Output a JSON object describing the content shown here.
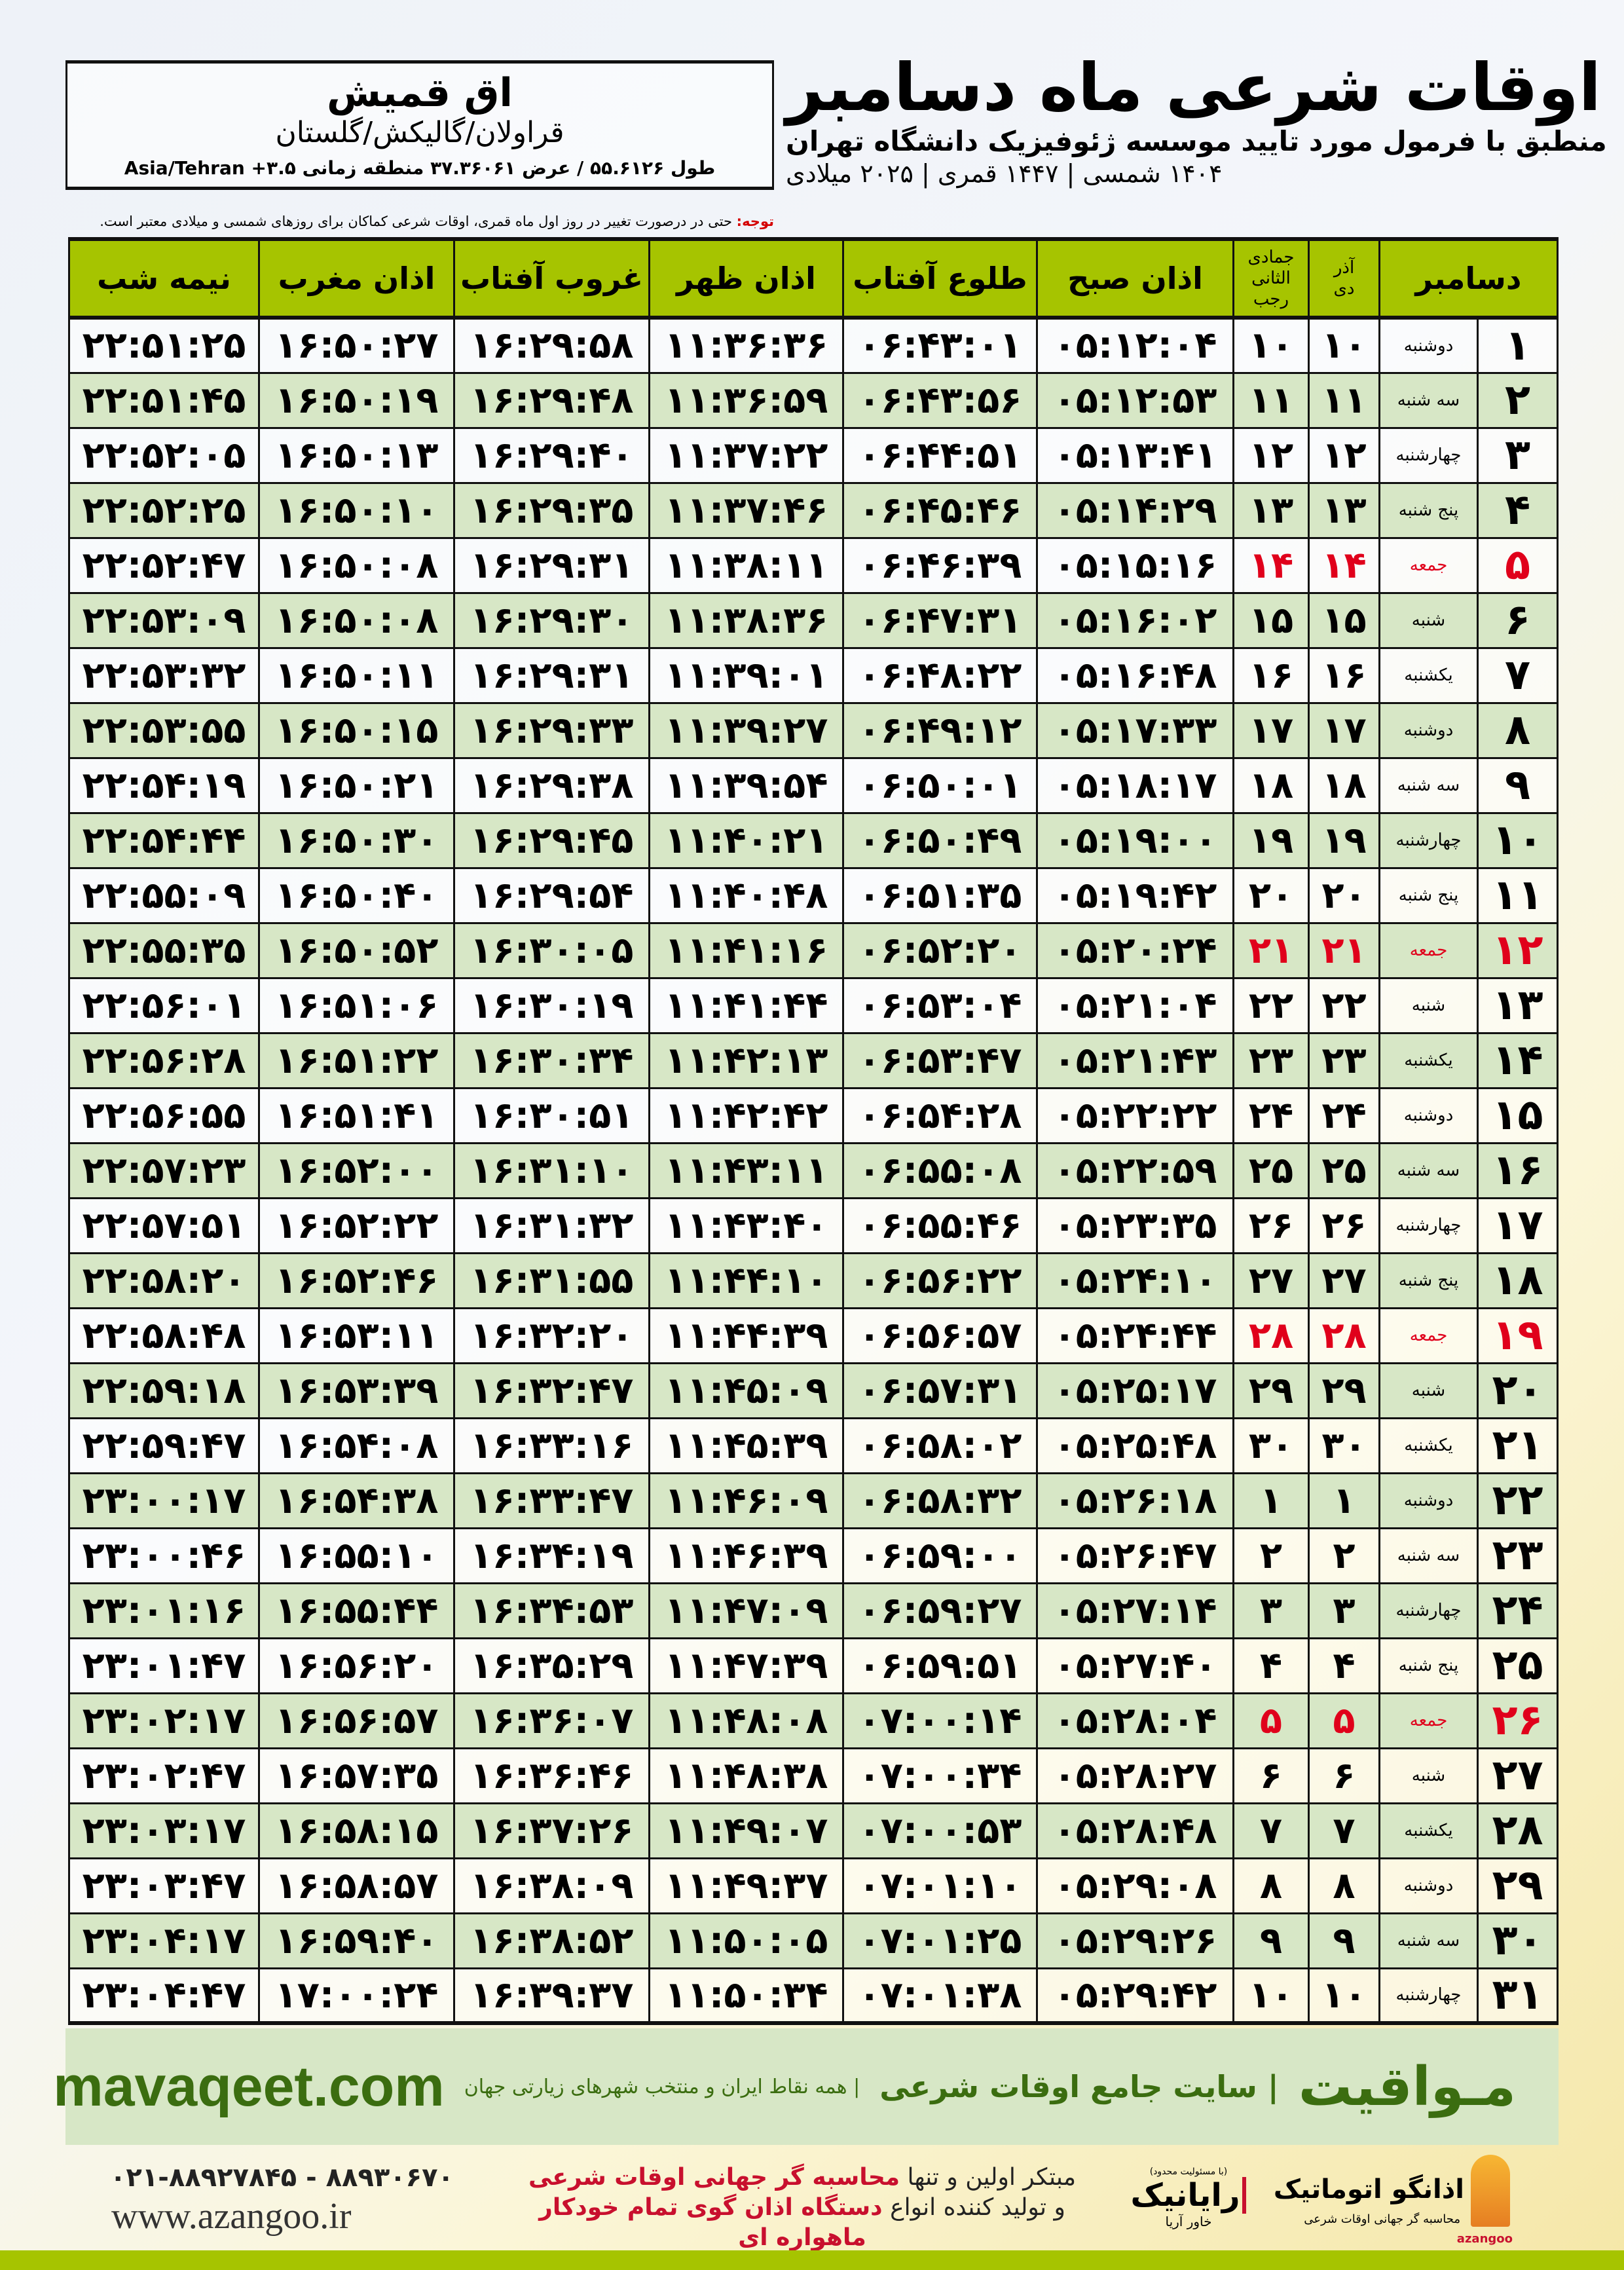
{
  "header": {
    "title": "اوقات شرعی ماه دسامبر",
    "subtitle": "منطبق با فرمول مورد تایید موسسه ژئوفیزیک دانشگاه تهران",
    "dates": "۱۴۰۴ شمسی | ۱۴۴۷ قمری | ۲۰۲۵ میلادی"
  },
  "location": {
    "name": "اق قمیش",
    "region": "قراولان/گالیکش/گلستان",
    "coords": "طول ۵۵.۶۱۲۶ / عرض ۳۷.۳۶۰۶۱ منطقه زمانی ۳.۵+ Asia/Tehran"
  },
  "note": {
    "label": "توجه:",
    "text": " حتی در درصورت تغییر در روز اول ماه قمری، اوقات شرعی کماکان برای روزهای شمسی و میلادی معتبر است."
  },
  "table": {
    "headers": {
      "month": "دسامبر",
      "dey_top": "آذر",
      "dey": "دی",
      "rajab_top": "جمادی الثانی",
      "rajab": "رجب",
      "fajr": "اذان صبح",
      "sunrise": "طلوع آفتاب",
      "dhuhr": "اذان ظهر",
      "sunset": "غروب آفتاب",
      "maghrib": "اذان مغرب",
      "midnight": "نیمه شب"
    },
    "holiday_color": "#e0001b",
    "header_color": "#a6c400",
    "alt_row_color": "#d7e7c6",
    "rows": [
      [
        "۱",
        "دوشنبه",
        "۱۰",
        "۱۰",
        "۰۵:۱۲:۰۴",
        "۰۶:۴۳:۰۱",
        "۱۱:۳۶:۳۶",
        "۱۶:۲۹:۵۸",
        "۱۶:۵۰:۲۷",
        "۲۲:۵۱:۲۵"
      ],
      [
        "۲",
        "سه شنبه",
        "۱۱",
        "۱۱",
        "۰۵:۱۲:۵۳",
        "۰۶:۴۳:۵۶",
        "۱۱:۳۶:۵۹",
        "۱۶:۲۹:۴۸",
        "۱۶:۵۰:۱۹",
        "۲۲:۵۱:۴۵"
      ],
      [
        "۳",
        "چهارشنبه",
        "۱۲",
        "۱۲",
        "۰۵:۱۳:۴۱",
        "۰۶:۴۴:۵۱",
        "۱۱:۳۷:۲۲",
        "۱۶:۲۹:۴۰",
        "۱۶:۵۰:۱۳",
        "۲۲:۵۲:۰۵"
      ],
      [
        "۴",
        "پنج شنبه",
        "۱۳",
        "۱۳",
        "۰۵:۱۴:۲۹",
        "۰۶:۴۵:۴۶",
        "۱۱:۳۷:۴۶",
        "۱۶:۲۹:۳۵",
        "۱۶:۵۰:۱۰",
        "۲۲:۵۲:۲۵"
      ],
      [
        "۵",
        "جمعه",
        "۱۴",
        "۱۴",
        "۰۵:۱۵:۱۶",
        "۰۶:۴۶:۳۹",
        "۱۱:۳۸:۱۱",
        "۱۶:۲۹:۳۱",
        "۱۶:۵۰:۰۸",
        "۲۲:۵۲:۴۷"
      ],
      [
        "۶",
        "شنبه",
        "۱۵",
        "۱۵",
        "۰۵:۱۶:۰۲",
        "۰۶:۴۷:۳۱",
        "۱۱:۳۸:۳۶",
        "۱۶:۲۹:۳۰",
        "۱۶:۵۰:۰۸",
        "۲۲:۵۳:۰۹"
      ],
      [
        "۷",
        "یکشنبه",
        "۱۶",
        "۱۶",
        "۰۵:۱۶:۴۸",
        "۰۶:۴۸:۲۲",
        "۱۱:۳۹:۰۱",
        "۱۶:۲۹:۳۱",
        "۱۶:۵۰:۱۱",
        "۲۲:۵۳:۳۲"
      ],
      [
        "۸",
        "دوشنبه",
        "۱۷",
        "۱۷",
        "۰۵:۱۷:۳۳",
        "۰۶:۴۹:۱۲",
        "۱۱:۳۹:۲۷",
        "۱۶:۲۹:۳۳",
        "۱۶:۵۰:۱۵",
        "۲۲:۵۳:۵۵"
      ],
      [
        "۹",
        "سه شنبه",
        "۱۸",
        "۱۸",
        "۰۵:۱۸:۱۷",
        "۰۶:۵۰:۰۱",
        "۱۱:۳۹:۵۴",
        "۱۶:۲۹:۳۸",
        "۱۶:۵۰:۲۱",
        "۲۲:۵۴:۱۹"
      ],
      [
        "۱۰",
        "چهارشنبه",
        "۱۹",
        "۱۹",
        "۰۵:۱۹:۰۰",
        "۰۶:۵۰:۴۹",
        "۱۱:۴۰:۲۱",
        "۱۶:۲۹:۴۵",
        "۱۶:۵۰:۳۰",
        "۲۲:۵۴:۴۴"
      ],
      [
        "۱۱",
        "پنج شنبه",
        "۲۰",
        "۲۰",
        "۰۵:۱۹:۴۲",
        "۰۶:۵۱:۳۵",
        "۱۱:۴۰:۴۸",
        "۱۶:۲۹:۵۴",
        "۱۶:۵۰:۴۰",
        "۲۲:۵۵:۰۹"
      ],
      [
        "۱۲",
        "جمعه",
        "۲۱",
        "۲۱",
        "۰۵:۲۰:۲۴",
        "۰۶:۵۲:۲۰",
        "۱۱:۴۱:۱۶",
        "۱۶:۳۰:۰۵",
        "۱۶:۵۰:۵۲",
        "۲۲:۵۵:۳۵"
      ],
      [
        "۱۳",
        "شنبه",
        "۲۲",
        "۲۲",
        "۰۵:۲۱:۰۴",
        "۰۶:۵۳:۰۴",
        "۱۱:۴۱:۴۴",
        "۱۶:۳۰:۱۹",
        "۱۶:۵۱:۰۶",
        "۲۲:۵۶:۰۱"
      ],
      [
        "۱۴",
        "یکشنبه",
        "۲۳",
        "۲۳",
        "۰۵:۲۱:۴۳",
        "۰۶:۵۳:۴۷",
        "۱۱:۴۲:۱۳",
        "۱۶:۳۰:۳۴",
        "۱۶:۵۱:۲۲",
        "۲۲:۵۶:۲۸"
      ],
      [
        "۱۵",
        "دوشنبه",
        "۲۴",
        "۲۴",
        "۰۵:۲۲:۲۲",
        "۰۶:۵۴:۲۸",
        "۱۱:۴۲:۴۲",
        "۱۶:۳۰:۵۱",
        "۱۶:۵۱:۴۱",
        "۲۲:۵۶:۵۵"
      ],
      [
        "۱۶",
        "سه شنبه",
        "۲۵",
        "۲۵",
        "۰۵:۲۲:۵۹",
        "۰۶:۵۵:۰۸",
        "۱۱:۴۳:۱۱",
        "۱۶:۳۱:۱۰",
        "۱۶:۵۲:۰۰",
        "۲۲:۵۷:۲۳"
      ],
      [
        "۱۷",
        "چهارشنبه",
        "۲۶",
        "۲۶",
        "۰۵:۲۳:۳۵",
        "۰۶:۵۵:۴۶",
        "۱۱:۴۳:۴۰",
        "۱۶:۳۱:۳۲",
        "۱۶:۵۲:۲۲",
        "۲۲:۵۷:۵۱"
      ],
      [
        "۱۸",
        "پنج شنبه",
        "۲۷",
        "۲۷",
        "۰۵:۲۴:۱۰",
        "۰۶:۵۶:۲۲",
        "۱۱:۴۴:۱۰",
        "۱۶:۳۱:۵۵",
        "۱۶:۵۲:۴۶",
        "۲۲:۵۸:۲۰"
      ],
      [
        "۱۹",
        "جمعه",
        "۲۸",
        "۲۸",
        "۰۵:۲۴:۴۴",
        "۰۶:۵۶:۵۷",
        "۱۱:۴۴:۳۹",
        "۱۶:۳۲:۲۰",
        "۱۶:۵۳:۱۱",
        "۲۲:۵۸:۴۸"
      ],
      [
        "۲۰",
        "شنبه",
        "۲۹",
        "۲۹",
        "۰۵:۲۵:۱۷",
        "۰۶:۵۷:۳۱",
        "۱۱:۴۵:۰۹",
        "۱۶:۳۲:۴۷",
        "۱۶:۵۳:۳۹",
        "۲۲:۵۹:۱۸"
      ],
      [
        "۲۱",
        "یکشنبه",
        "۳۰",
        "۳۰",
        "۰۵:۲۵:۴۸",
        "۰۶:۵۸:۰۲",
        "۱۱:۴۵:۳۹",
        "۱۶:۳۳:۱۶",
        "۱۶:۵۴:۰۸",
        "۲۲:۵۹:۴۷"
      ],
      [
        "۲۲",
        "دوشنبه",
        "۱",
        "۱",
        "۰۵:۲۶:۱۸",
        "۰۶:۵۸:۳۲",
        "۱۱:۴۶:۰۹",
        "۱۶:۳۳:۴۷",
        "۱۶:۵۴:۳۸",
        "۲۳:۰۰:۱۷"
      ],
      [
        "۲۳",
        "سه شنبه",
        "۲",
        "۲",
        "۰۵:۲۶:۴۷",
        "۰۶:۵۹:۰۰",
        "۱۱:۴۶:۳۹",
        "۱۶:۳۴:۱۹",
        "۱۶:۵۵:۱۰",
        "۲۳:۰۰:۴۶"
      ],
      [
        "۲۴",
        "چهارشنبه",
        "۳",
        "۳",
        "۰۵:۲۷:۱۴",
        "۰۶:۵۹:۲۷",
        "۱۱:۴۷:۰۹",
        "۱۶:۳۴:۵۳",
        "۱۶:۵۵:۴۴",
        "۲۳:۰۱:۱۶"
      ],
      [
        "۲۵",
        "پنج شنبه",
        "۴",
        "۴",
        "۰۵:۲۷:۴۰",
        "۰۶:۵۹:۵۱",
        "۱۱:۴۷:۳۹",
        "۱۶:۳۵:۲۹",
        "۱۶:۵۶:۲۰",
        "۲۳:۰۱:۴۷"
      ],
      [
        "۲۶",
        "جمعه",
        "۵",
        "۵",
        "۰۵:۲۸:۰۴",
        "۰۷:۰۰:۱۴",
        "۱۱:۴۸:۰۸",
        "۱۶:۳۶:۰۷",
        "۱۶:۵۶:۵۷",
        "۲۳:۰۲:۱۷"
      ],
      [
        "۲۷",
        "شنبه",
        "۶",
        "۶",
        "۰۵:۲۸:۲۷",
        "۰۷:۰۰:۳۴",
        "۱۱:۴۸:۳۸",
        "۱۶:۳۶:۴۶",
        "۱۶:۵۷:۳۵",
        "۲۳:۰۲:۴۷"
      ],
      [
        "۲۸",
        "یکشنبه",
        "۷",
        "۷",
        "۰۵:۲۸:۴۸",
        "۰۷:۰۰:۵۳",
        "۱۱:۴۹:۰۷",
        "۱۶:۳۷:۲۶",
        "۱۶:۵۸:۱۵",
        "۲۳:۰۳:۱۷"
      ],
      [
        "۲۹",
        "دوشنبه",
        "۸",
        "۸",
        "۰۵:۲۹:۰۸",
        "۰۷:۰۱:۱۰",
        "۱۱:۴۹:۳۷",
        "۱۶:۳۸:۰۹",
        "۱۶:۵۸:۵۷",
        "۲۳:۰۳:۴۷"
      ],
      [
        "۳۰",
        "سه شنبه",
        "۹",
        "۹",
        "۰۵:۲۹:۲۶",
        "۰۷:۰۱:۲۵",
        "۱۱:۵۰:۰۵",
        "۱۶:۳۸:۵۲",
        "۱۶:۵۹:۴۰",
        "۲۳:۰۴:۱۷"
      ],
      [
        "۳۱",
        "چهارشنبه",
        "۱۰",
        "۱۰",
        "۰۵:۲۹:۴۲",
        "۰۷:۰۱:۳۸",
        "۱۱:۵۰:۳۴",
        "۱۶:۳۹:۳۷",
        "۱۷:۰۰:۲۴",
        "۲۳:۰۴:۴۷"
      ]
    ]
  },
  "banner": {
    "brand": "مـواقیت",
    "tagline": "| سایت جامع اوقات شرعی",
    "sub": "| همه نقاط ایران و منتخب شهرهای زیارتی جهان",
    "url": "mavaqeet.com",
    "color": "#3b6d10"
  },
  "footer": {
    "phone": "۰۲۱-۸۸۹۲۷۸۴۵ - ۸۸۹۳۰۶۷۰",
    "website": "www.azangoo.ir",
    "promo1_a": "مبتکر اولین و تنها ",
    "promo1_b": "محاسبه گر جهانی اوقات شرعی",
    "promo2_a": "و تولید کننده انواع ",
    "promo2_b": "دستگاه اذان گوی تمام خودکار ماهواره ای",
    "rayanik": "رایانیک",
    "rayanik_sub": "خاور آریا",
    "rayanik_note": "(با مسئولیت محدود)",
    "azangoo": "اذانگو اتوماتیک",
    "azangoo_sub": "محاسبه گر جهانی اوقات شرعی",
    "azangoo_latin": "azangoo"
  }
}
